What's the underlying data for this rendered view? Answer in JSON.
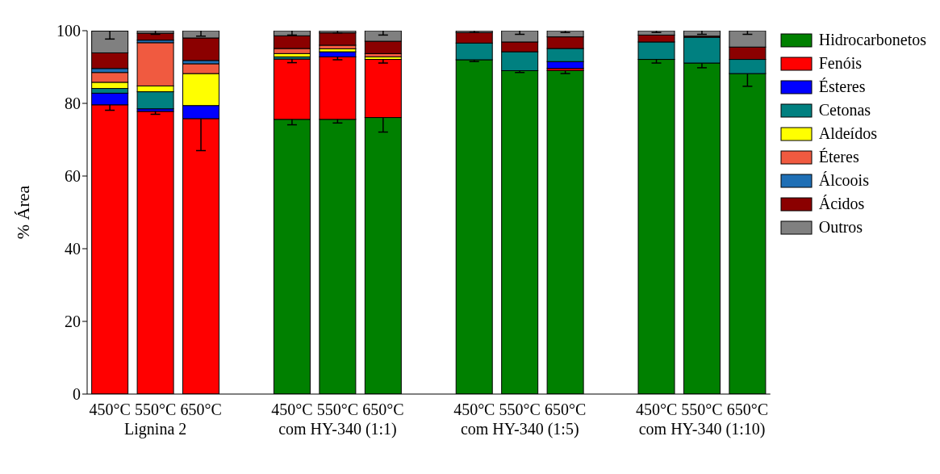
{
  "chart_data": {
    "type": "bar",
    "stacked": true,
    "ylabel": "% Área",
    "categories": [
      "450°C",
      "550°C",
      "650°C",
      null,
      "450°C",
      "550°C",
      "650°C",
      null,
      "450°C",
      "550°C",
      "650°C",
      null,
      "450°C",
      "550°C",
      "650°C"
    ],
    "annotations": [
      "Lignina 2",
      "com HY-340 (1:1)",
      "com HY-340 (1:5)",
      "com HY-340 (1:10)"
    ],
    "ylim": [
      0,
      100
    ],
    "yticks": [
      0,
      20,
      40,
      60,
      80,
      100
    ],
    "legend": "right",
    "grid": false,
    "series": [
      {
        "name": "Hidrocarbonetos",
        "color": "#008000",
        "values": [
          null,
          null,
          null,
          null,
          75.6,
          75.6,
          76.1,
          null,
          92.0,
          89.0,
          89.0,
          null,
          92.1,
          91.1,
          88.2
        ],
        "errors": [
          null,
          null,
          null,
          null,
          1.5,
          1,
          4,
          null,
          0.5,
          0.5,
          0.8,
          null,
          1,
          1.3,
          3.5
        ]
      },
      {
        "name": "Fenóis",
        "color": "#ff0000",
        "values": [
          79.6,
          77.8,
          75.8,
          null,
          16.6,
          17.2,
          16.0,
          null,
          null,
          null,
          0.6,
          null,
          null,
          null,
          null
        ],
        "errors": [
          1.5,
          0.8,
          8.8,
          null,
          1,
          0.8,
          1,
          null,
          null,
          null,
          null,
          null,
          null,
          null,
          null
        ]
      },
      {
        "name": "Ésteres",
        "color": "#0000ff",
        "values": [
          3.2,
          0.7,
          3.6,
          null,
          null,
          1.4,
          null,
          null,
          null,
          null,
          1.9,
          null,
          null,
          null,
          null
        ]
      },
      {
        "name": "Cetonas",
        "color": "#008080",
        "values": [
          1.3,
          4.7,
          null,
          null,
          0.6,
          null,
          null,
          null,
          4.6,
          5.2,
          3.6,
          null,
          4.8,
          7.1,
          3.9
        ]
      },
      {
        "name": "Aldeídos",
        "color": "#ffff00",
        "values": [
          1.7,
          1.6,
          8.8,
          null,
          0.9,
          0.8,
          0.7,
          null,
          null,
          null,
          null,
          null,
          null,
          null,
          null
        ]
      },
      {
        "name": "Éteres",
        "color": "#f05a40",
        "values": [
          2.7,
          11.9,
          2.7,
          null,
          1.4,
          1.0,
          0.9,
          null,
          null,
          null,
          null,
          null,
          null,
          null,
          null
        ]
      },
      {
        "name": "Álcoois",
        "color": "#1f6fb5",
        "values": [
          1.1,
          0.7,
          0.9,
          null,
          null,
          null,
          null,
          null,
          null,
          null,
          null,
          null,
          null,
          null,
          null
        ]
      },
      {
        "name": "Ácidos",
        "color": "#8b0000",
        "values": [
          4.3,
          1.9,
          6.2,
          null,
          3.5,
          3.4,
          3.4,
          null,
          2.9,
          2.7,
          3.2,
          null,
          1.9,
          0.3,
          3.4
        ]
      },
      {
        "name": "Outros",
        "color": "#808080",
        "values": [
          6.0,
          0.7,
          2.0,
          null,
          1.4,
          0.6,
          2.9,
          null,
          0.5,
          3.1,
          1.7,
          null,
          1.2,
          1.5,
          4.5
        ],
        "errors": [
          2.2,
          1,
          1.5,
          null,
          1.2,
          0.6,
          1.2,
          null,
          0.5,
          1,
          0.5,
          null,
          0.5,
          1,
          1
        ]
      }
    ]
  }
}
